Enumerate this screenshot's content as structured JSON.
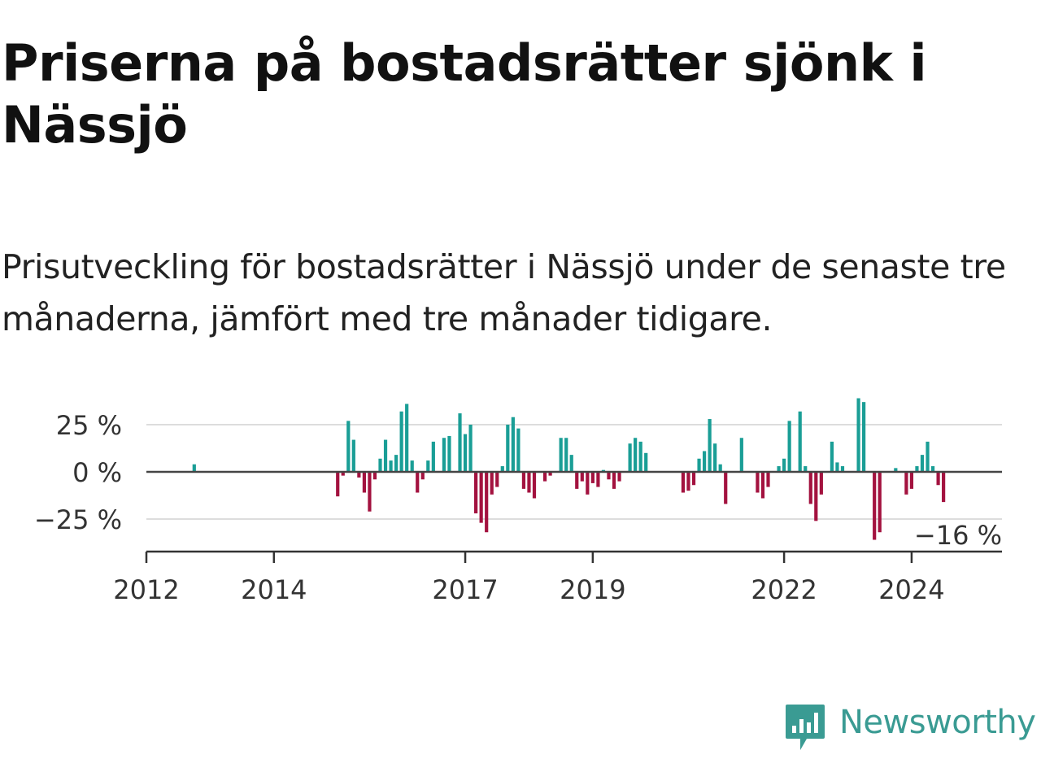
{
  "title": "Priserna på bostadsrätter sjönk i Nässjö",
  "subtitle": "Prisutveckling för bostadsrätter i Nässjö under de senaste tre månaderna, jämfört med tre månader tidigare.",
  "brand": {
    "name": "Newsworthy",
    "color": "#3a9b93"
  },
  "colors": {
    "positive": "#1a9e96",
    "negative": "#a3123f",
    "zero_line": "#444444",
    "grid": "#dddddd",
    "axis": "#333333"
  },
  "chart_data": {
    "type": "bar",
    "title": "",
    "xlabel": "",
    "ylabel": "",
    "y_unit": "%",
    "ylim": [
      -42,
      40
    ],
    "y_ticks": [
      {
        "value": 25,
        "label": "25 %"
      },
      {
        "value": 0,
        "label": "0 %"
      },
      {
        "value": -25,
        "label": "−25 %"
      }
    ],
    "x_range": [
      "2012-01",
      "2025-06"
    ],
    "x_ticks": [
      {
        "date": "2012-01",
        "label": "2012"
      },
      {
        "date": "2014-01",
        "label": "2014"
      },
      {
        "date": "2017-01",
        "label": "2017"
      },
      {
        "date": "2019-01",
        "label": "2019"
      },
      {
        "date": "2022-01",
        "label": "2022"
      },
      {
        "date": "2024-01",
        "label": "2024"
      }
    ],
    "grid": true,
    "annotation": {
      "date": "2024-08",
      "label": "−16 %"
    },
    "series": [
      {
        "points": [
          [
            "2012-10",
            4
          ],
          [
            "2015-01",
            -13
          ],
          [
            "2015-02",
            -2
          ],
          [
            "2015-03",
            27
          ],
          [
            "2015-04",
            17
          ],
          [
            "2015-05",
            -3
          ],
          [
            "2015-06",
            -11
          ],
          [
            "2015-07",
            -21
          ],
          [
            "2015-08",
            -4
          ],
          [
            "2015-09",
            7
          ],
          [
            "2015-10",
            17
          ],
          [
            "2015-11",
            6
          ],
          [
            "2015-12",
            9
          ],
          [
            "2016-01",
            32
          ],
          [
            "2016-02",
            36
          ],
          [
            "2016-03",
            6
          ],
          [
            "2016-04",
            -11
          ],
          [
            "2016-05",
            -4
          ],
          [
            "2016-06",
            6
          ],
          [
            "2016-07",
            16
          ],
          [
            "2016-08",
            0
          ],
          [
            "2016-09",
            18
          ],
          [
            "2016-10",
            19
          ],
          [
            "2016-11",
            0
          ],
          [
            "2016-12",
            31
          ],
          [
            "2017-01",
            20
          ],
          [
            "2017-02",
            25
          ],
          [
            "2017-03",
            -22
          ],
          [
            "2017-04",
            -27
          ],
          [
            "2017-05",
            -32
          ],
          [
            "2017-06",
            -12
          ],
          [
            "2017-07",
            -8
          ],
          [
            "2017-08",
            3
          ],
          [
            "2017-09",
            25
          ],
          [
            "2017-10",
            29
          ],
          [
            "2017-11",
            23
          ],
          [
            "2017-12",
            -9
          ],
          [
            "2018-01",
            -11
          ],
          [
            "2018-02",
            -14
          ],
          [
            "2018-03",
            0
          ],
          [
            "2018-04",
            -5
          ],
          [
            "2018-05",
            -2
          ],
          [
            "2018-06",
            0
          ],
          [
            "2018-07",
            18
          ],
          [
            "2018-08",
            18
          ],
          [
            "2018-09",
            9
          ],
          [
            "2018-10",
            -9
          ],
          [
            "2018-11",
            -5
          ],
          [
            "2018-12",
            -12
          ],
          [
            "2019-01",
            -6
          ],
          [
            "2019-02",
            -8
          ],
          [
            "2019-03",
            1
          ],
          [
            "2019-04",
            -4
          ],
          [
            "2019-05",
            -9
          ],
          [
            "2019-06",
            -5
          ],
          [
            "2019-08",
            15
          ],
          [
            "2019-09",
            18
          ],
          [
            "2019-10",
            16
          ],
          [
            "2019-11",
            10
          ],
          [
            "2020-06",
            -11
          ],
          [
            "2020-07",
            -10
          ],
          [
            "2020-08",
            -7
          ],
          [
            "2020-09",
            7
          ],
          [
            "2020-10",
            11
          ],
          [
            "2020-11",
            28
          ],
          [
            "2020-12",
            15
          ],
          [
            "2021-01",
            4
          ],
          [
            "2021-02",
            -17
          ],
          [
            "2021-05",
            18
          ],
          [
            "2021-08",
            -11
          ],
          [
            "2021-09",
            -14
          ],
          [
            "2021-10",
            -8
          ],
          [
            "2021-12",
            3
          ],
          [
            "2022-01",
            7
          ],
          [
            "2022-02",
            27
          ],
          [
            "2022-03",
            0
          ],
          [
            "2022-04",
            32
          ],
          [
            "2022-05",
            3
          ],
          [
            "2022-06",
            -17
          ],
          [
            "2022-07",
            -26
          ],
          [
            "2022-08",
            -12
          ],
          [
            "2022-10",
            16
          ],
          [
            "2022-11",
            5
          ],
          [
            "2022-12",
            3
          ],
          [
            "2023-03",
            39
          ],
          [
            "2023-04",
            37
          ],
          [
            "2023-06",
            -36
          ],
          [
            "2023-07",
            -32
          ],
          [
            "2023-10",
            2
          ],
          [
            "2023-12",
            -12
          ],
          [
            "2024-01",
            -9
          ],
          [
            "2024-02",
            3
          ],
          [
            "2024-03",
            9
          ],
          [
            "2024-04",
            16
          ],
          [
            "2024-05",
            3
          ],
          [
            "2024-06",
            -7
          ],
          [
            "2024-07",
            -16
          ]
        ]
      }
    ]
  }
}
